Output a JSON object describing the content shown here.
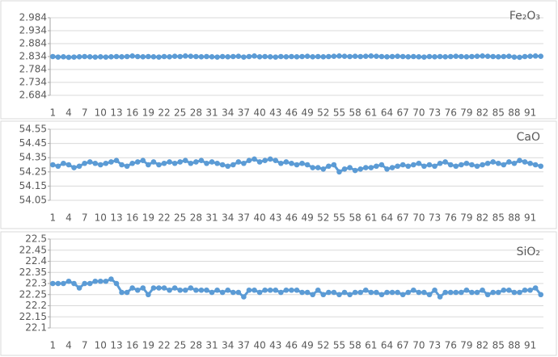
{
  "chart_data": [
    {
      "type": "line",
      "title": "Fe₂O₃",
      "color": "#5b9bd5",
      "grid": true,
      "categories": [
        "1",
        null,
        null,
        "4",
        null,
        null,
        "7",
        null,
        null,
        "10",
        null,
        null,
        "13",
        null,
        null,
        "16",
        null,
        null,
        "19",
        null,
        null,
        "22",
        null,
        null,
        "25",
        null,
        null,
        "28",
        null,
        null,
        "31",
        null,
        null,
        "34",
        null,
        null,
        "37",
        null,
        null,
        "40",
        null,
        null,
        "43",
        null,
        null,
        "46",
        null,
        null,
        "49",
        null,
        null,
        "52",
        null,
        null,
        "55",
        null,
        null,
        "58",
        null,
        null,
        "61",
        null,
        null,
        "64",
        null,
        null,
        "67",
        null,
        null,
        "70",
        null,
        null,
        "73",
        null,
        null,
        "76",
        null,
        null,
        "79",
        null,
        null,
        "82",
        null,
        null,
        "85",
        null,
        null,
        "88",
        null,
        null,
        "91",
        null,
        null
      ],
      "values": [
        2.834,
        2.832,
        2.833,
        2.831,
        2.832,
        2.833,
        2.834,
        2.833,
        2.832,
        2.833,
        2.832,
        2.833,
        2.834,
        2.833,
        2.834,
        2.836,
        2.834,
        2.833,
        2.834,
        2.833,
        2.832,
        2.834,
        2.833,
        2.835,
        2.834,
        2.836,
        2.835,
        2.834,
        2.833,
        2.834,
        2.833,
        2.832,
        2.834,
        2.833,
        2.834,
        2.835,
        2.832,
        2.834,
        2.836,
        2.833,
        2.834,
        2.833,
        2.832,
        2.834,
        2.833,
        2.834,
        2.833,
        2.834,
        2.835,
        2.833,
        2.834,
        2.833,
        2.834,
        2.835,
        2.836,
        2.835,
        2.834,
        2.835,
        2.834,
        2.835,
        2.836,
        2.835,
        2.834,
        2.833,
        2.834,
        2.835,
        2.834,
        2.833,
        2.834,
        2.833,
        2.832,
        2.834,
        2.833,
        2.834,
        2.833,
        2.834,
        2.835,
        2.834,
        2.833,
        2.834,
        2.835,
        2.836,
        2.835,
        2.834,
        2.833,
        2.834,
        2.835,
        2.832,
        2.831,
        2.834,
        2.835,
        2.836,
        2.835
      ],
      "ylim": [
        2.684,
        2.984
      ],
      "yticks": [
        2.684,
        2.734,
        2.784,
        2.834,
        2.884,
        2.934,
        2.984
      ]
    },
    {
      "type": "line",
      "title": "CaO",
      "color": "#5b9bd5",
      "grid": true,
      "categories": [
        "1",
        null,
        null,
        "4",
        null,
        null,
        "7",
        null,
        null,
        "10",
        null,
        null,
        "13",
        null,
        null,
        "16",
        null,
        null,
        "19",
        null,
        null,
        "22",
        null,
        null,
        "25",
        null,
        null,
        "28",
        null,
        null,
        "31",
        null,
        null,
        "34",
        null,
        null,
        "37",
        null,
        null,
        "40",
        null,
        null,
        "43",
        null,
        null,
        "46",
        null,
        null,
        "49",
        null,
        null,
        "52",
        null,
        null,
        "55",
        null,
        null,
        "58",
        null,
        null,
        "61",
        null,
        null,
        "64",
        null,
        null,
        "67",
        null,
        null,
        "70",
        null,
        null,
        "73",
        null,
        null,
        "76",
        null,
        null,
        "79",
        null,
        null,
        "82",
        null,
        null,
        "85",
        null,
        null,
        "88",
        null,
        null,
        "91",
        null,
        null
      ],
      "values": [
        54.3,
        54.29,
        54.31,
        54.3,
        54.28,
        54.29,
        54.31,
        54.32,
        54.31,
        54.3,
        54.31,
        54.32,
        54.33,
        54.3,
        54.29,
        54.31,
        54.32,
        54.33,
        54.3,
        54.32,
        54.3,
        54.31,
        54.32,
        54.31,
        54.32,
        54.33,
        54.31,
        54.32,
        54.33,
        54.31,
        54.32,
        54.31,
        54.3,
        54.29,
        54.3,
        54.32,
        54.31,
        54.33,
        54.34,
        54.32,
        54.33,
        54.34,
        54.33,
        54.31,
        54.32,
        54.31,
        54.3,
        54.31,
        54.3,
        54.28,
        54.28,
        54.27,
        54.29,
        54.3,
        54.25,
        54.27,
        54.28,
        54.26,
        54.27,
        54.28,
        54.28,
        54.29,
        54.3,
        54.27,
        54.28,
        54.29,
        54.3,
        54.29,
        54.3,
        54.31,
        54.29,
        54.3,
        54.29,
        54.31,
        54.32,
        54.3,
        54.29,
        54.3,
        54.31,
        54.3,
        54.29,
        54.3,
        54.31,
        54.32,
        54.31,
        54.3,
        54.32,
        54.31,
        54.33,
        54.32,
        54.31,
        54.3,
        54.29
      ],
      "ylim": [
        54.05,
        54.55
      ],
      "yticks": [
        54.05,
        54.15,
        54.25,
        54.35,
        54.45,
        54.55
      ]
    },
    {
      "type": "line",
      "title": "SiO₂",
      "color": "#5b9bd5",
      "grid": true,
      "categories": [
        "1",
        null,
        null,
        "4",
        null,
        null,
        "7",
        null,
        null,
        "10",
        null,
        null,
        "13",
        null,
        null,
        "16",
        null,
        null,
        "19",
        null,
        null,
        "22",
        null,
        null,
        "25",
        null,
        null,
        "28",
        null,
        null,
        "31",
        null,
        null,
        "34",
        null,
        null,
        "37",
        null,
        null,
        "40",
        null,
        null,
        "43",
        null,
        null,
        "46",
        null,
        null,
        "49",
        null,
        null,
        "52",
        null,
        null,
        "55",
        null,
        null,
        "58",
        null,
        null,
        "61",
        null,
        null,
        "64",
        null,
        null,
        "67",
        null,
        null,
        "70",
        null,
        null,
        "73",
        null,
        null,
        "76",
        null,
        null,
        "79",
        null,
        null,
        "82",
        null,
        null,
        "85",
        null,
        null,
        "88",
        null,
        null,
        "91",
        null,
        null
      ],
      "values": [
        22.3,
        22.3,
        22.3,
        22.31,
        22.3,
        22.28,
        22.3,
        22.3,
        22.31,
        22.31,
        22.31,
        22.32,
        22.3,
        22.26,
        22.26,
        22.28,
        22.27,
        22.28,
        22.25,
        22.28,
        22.28,
        22.28,
        22.27,
        22.28,
        22.27,
        22.27,
        22.28,
        22.27,
        22.27,
        22.27,
        22.26,
        22.27,
        22.26,
        22.27,
        22.26,
        22.26,
        22.24,
        22.27,
        22.27,
        22.26,
        22.27,
        22.27,
        22.27,
        22.26,
        22.27,
        22.27,
        22.27,
        22.26,
        22.26,
        22.25,
        22.27,
        22.25,
        22.26,
        22.26,
        22.25,
        22.26,
        22.25,
        22.26,
        22.26,
        22.27,
        22.26,
        22.26,
        22.25,
        22.26,
        22.26,
        22.26,
        22.25,
        22.26,
        22.27,
        22.26,
        22.26,
        22.25,
        22.27,
        22.24,
        22.26,
        22.26,
        22.26,
        22.26,
        22.27,
        22.26,
        22.26,
        22.27,
        22.25,
        22.26,
        22.26,
        22.27,
        22.27,
        22.26,
        22.26,
        22.27,
        22.27,
        22.28,
        22.25
      ],
      "ylim": [
        22.1,
        22.5
      ],
      "yticks": [
        22.1,
        22.15,
        22.2,
        22.25,
        22.3,
        22.35,
        22.4,
        22.45,
        22.5
      ]
    }
  ]
}
